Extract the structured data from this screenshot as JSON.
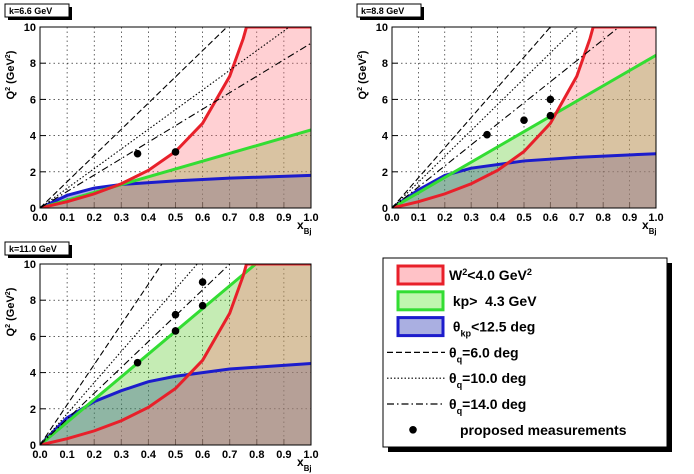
{
  "chart_data": [
    {
      "type": "line",
      "label": "k=6.6 GeV",
      "xlim": [
        0,
        1
      ],
      "ylim": [
        0,
        10
      ],
      "xticks": [
        {
          "value": 0,
          "label": "0.0"
        },
        0.1,
        0.2,
        0.3,
        0.4,
        0.5,
        0.6,
        0.7,
        0.8,
        0.9,
        {
          "value": 1,
          "label": "1.0"
        }
      ],
      "yticks": [
        0,
        2,
        4,
        6,
        8,
        10
      ],
      "grid": true,
      "ylabel": [
        {
          "text": "Q"
        },
        {
          "text": "2",
          "pos": "sup"
        },
        {
          "text": " (GeV"
        },
        {
          "text": "2",
          "pos": "sup"
        },
        {
          "text": ")"
        }
      ],
      "xlabel": [
        {
          "text": "x"
        },
        {
          "text": "Bj",
          "pos": "sub"
        }
      ],
      "series": [
        {
          "style": "solid",
          "color": "#1c1ccc",
          "fill": "rgba(40,40,190,0.38)",
          "x": [
            0,
            0.1,
            0.2,
            0.3,
            0.5,
            0.7,
            1.0
          ],
          "values": [
            0,
            0.7,
            1.1,
            1.3,
            1.5,
            1.65,
            1.8
          ]
        },
        {
          "style": "solid",
          "color": "#33dd33",
          "fill": "rgba(90,200,40,0.35)",
          "x": [
            0,
            1.0
          ],
          "values": [
            0,
            4.31
          ]
        },
        {
          "style": "solid",
          "color": "#e8202a",
          "fill": "rgba(255,120,130,0.35)",
          "x": [
            0,
            0.1,
            0.2,
            0.3,
            0.4,
            0.5,
            0.6,
            0.7,
            0.75,
            0.762,
            1.0
          ],
          "values": [
            0,
            0.35,
            0.78,
            1.34,
            2.08,
            3.12,
            4.68,
            7.28,
            9.36,
            10,
            10
          ]
        },
        {
          "style": "dashed",
          "color": "#000000",
          "x": [
            0,
            0.69
          ],
          "values": [
            0,
            10
          ]
        },
        {
          "style": "dotted",
          "color": "#000000",
          "x": [
            0,
            0.92
          ],
          "values": [
            0,
            10
          ]
        },
        {
          "style": "dashdot",
          "color": "#000000",
          "x": [
            0,
            1.0
          ],
          "values": [
            0,
            9.1
          ]
        },
        {
          "style": "marker",
          "color": "#000000",
          "x": [
            0.36,
            0.5
          ],
          "values": [
            3.0,
            3.1
          ]
        }
      ]
    },
    {
      "type": "line",
      "label": "k=8.8 GeV",
      "xlim": [
        0,
        1
      ],
      "ylim": [
        0,
        10
      ],
      "xticks": [
        {
          "value": 0,
          "label": "0.0"
        },
        0.1,
        0.2,
        0.3,
        0.4,
        0.5,
        0.6,
        0.7,
        0.8,
        0.9,
        {
          "value": 1,
          "label": "1.0"
        }
      ],
      "yticks": [
        0,
        2,
        4,
        6,
        8,
        10
      ],
      "grid": true,
      "ylabel": [
        {
          "text": "Q"
        },
        {
          "text": "2",
          "pos": "sup"
        },
        {
          "text": " (GeV"
        },
        {
          "text": "2",
          "pos": "sup"
        },
        {
          "text": ")"
        }
      ],
      "xlabel": [
        {
          "text": "x"
        },
        {
          "text": "Bj",
          "pos": "sub"
        }
      ],
      "series": [
        {
          "style": "solid",
          "color": "#1c1ccc",
          "fill": "rgba(40,40,190,0.38)",
          "x": [
            0,
            0.1,
            0.2,
            0.3,
            0.5,
            0.7,
            1.0
          ],
          "values": [
            0,
            1.0,
            1.8,
            2.2,
            2.6,
            2.8,
            3.0
          ]
        },
        {
          "style": "solid",
          "color": "#33dd33",
          "fill": "rgba(90,200,40,0.35)",
          "x": [
            0,
            1.0
          ],
          "values": [
            0,
            8.44
          ]
        },
        {
          "style": "solid",
          "color": "#e8202a",
          "fill": "rgba(255,120,130,0.35)",
          "x": [
            0,
            0.1,
            0.2,
            0.3,
            0.4,
            0.5,
            0.6,
            0.7,
            0.75,
            0.762,
            1.0
          ],
          "values": [
            0,
            0.35,
            0.78,
            1.34,
            2.08,
            3.12,
            4.68,
            7.28,
            9.36,
            10,
            10
          ]
        },
        {
          "style": "dashed",
          "color": "#000000",
          "x": [
            0,
            0.6
          ],
          "values": [
            0,
            10
          ]
        },
        {
          "style": "dotted",
          "color": "#000000",
          "x": [
            0,
            0.7
          ],
          "values": [
            0,
            10
          ]
        },
        {
          "style": "dashdot",
          "color": "#000000",
          "x": [
            0,
            0.86
          ],
          "values": [
            0,
            10
          ]
        },
        {
          "style": "marker",
          "color": "#000000",
          "x": [
            0.36,
            0.5,
            0.6,
            0.6
          ],
          "values": [
            4.05,
            4.85,
            5.1,
            6.0
          ]
        }
      ]
    },
    {
      "type": "line",
      "label": "k=11.0 GeV",
      "xlim": [
        0,
        1
      ],
      "ylim": [
        0,
        10
      ],
      "xticks": [
        {
          "value": 0,
          "label": "0.0"
        },
        0.1,
        0.2,
        0.3,
        0.4,
        0.5,
        0.6,
        0.7,
        0.8,
        0.9,
        {
          "value": 1,
          "label": "1.0"
        }
      ],
      "yticks": [
        0,
        2,
        4,
        6,
        8,
        10
      ],
      "grid": true,
      "ylabel": [
        {
          "text": "Q"
        },
        {
          "text": "2",
          "pos": "sup"
        },
        {
          "text": " (GeV"
        },
        {
          "text": "2",
          "pos": "sup"
        },
        {
          "text": ")"
        }
      ],
      "xlabel": [
        {
          "text": "x"
        },
        {
          "text": "Bj",
          "pos": "sub"
        }
      ],
      "series": [
        {
          "style": "solid",
          "color": "#1c1ccc",
          "fill": "rgba(40,40,190,0.38)",
          "x": [
            0,
            0.1,
            0.2,
            0.3,
            0.4,
            0.5,
            0.7,
            1.0
          ],
          "values": [
            0,
            1.5,
            2.4,
            3.0,
            3.5,
            3.8,
            4.2,
            4.5
          ]
        },
        {
          "style": "solid",
          "color": "#33dd33",
          "fill": "rgba(90,200,40,0.35)",
          "x": [
            0,
            0.796,
            1.0
          ],
          "values": [
            0,
            10,
            10
          ]
        },
        {
          "style": "solid",
          "color": "#e8202a",
          "fill": "rgba(255,120,130,0.35)",
          "x": [
            0,
            0.1,
            0.2,
            0.3,
            0.4,
            0.5,
            0.6,
            0.7,
            0.75,
            0.762,
            1.0
          ],
          "values": [
            0,
            0.35,
            0.78,
            1.34,
            2.08,
            3.12,
            4.68,
            7.28,
            9.36,
            10,
            10
          ]
        },
        {
          "style": "dashed",
          "color": "#000000",
          "x": [
            0,
            0.45
          ],
          "values": [
            0,
            10
          ]
        },
        {
          "style": "dotted",
          "color": "#000000",
          "x": [
            0,
            0.58
          ],
          "values": [
            0,
            10
          ]
        },
        {
          "style": "dashdot",
          "color": "#000000",
          "x": [
            0,
            0.7
          ],
          "values": [
            0,
            10
          ]
        },
        {
          "style": "marker",
          "color": "#000000",
          "x": [
            0.36,
            0.5,
            0.5,
            0.6,
            0.6
          ],
          "values": [
            4.55,
            6.3,
            7.2,
            7.7,
            9.0
          ]
        }
      ]
    }
  ],
  "legend": {
    "items": [
      {
        "style": "fill",
        "color": "#e8202a",
        "fill": "rgba(255,120,130,0.45)",
        "label": [
          {
            "text": "W"
          },
          {
            "text": "2",
            "pos": "sup"
          },
          {
            "text": "<4.0 GeV"
          },
          {
            "text": "2",
            "pos": "sup"
          }
        ]
      },
      {
        "style": "fill",
        "color": "#33dd33",
        "fill": "rgba(150,240,120,0.6)",
        "label": [
          {
            "text": " kp>  4.3 GeV"
          }
        ]
      },
      {
        "style": "fill",
        "color": "#1c1ccc",
        "fill": "rgba(100,110,200,0.55)",
        "label": [
          {
            "text": " θ"
          },
          {
            "text": "kp",
            "pos": "sub"
          },
          {
            "text": "<12.5 deg"
          }
        ]
      },
      {
        "style": "dashed",
        "color": "#000000",
        "label": [
          {
            "text": "θ"
          },
          {
            "text": "q",
            "pos": "sub"
          },
          {
            "text": "=6.0 deg"
          }
        ]
      },
      {
        "style": "dotted",
        "color": "#000000",
        "label": [
          {
            "text": "θ"
          },
          {
            "text": "q",
            "pos": "sub"
          },
          {
            "text": "=10.0 deg"
          }
        ]
      },
      {
        "style": "dashdot",
        "color": "#000000",
        "label": [
          {
            "text": "θ"
          },
          {
            "text": "q",
            "pos": "sub"
          },
          {
            "text": "=14.0 deg"
          }
        ]
      },
      {
        "style": "marker",
        "color": "#000000",
        "label": [
          {
            "text": "proposed measurements"
          }
        ]
      }
    ]
  }
}
